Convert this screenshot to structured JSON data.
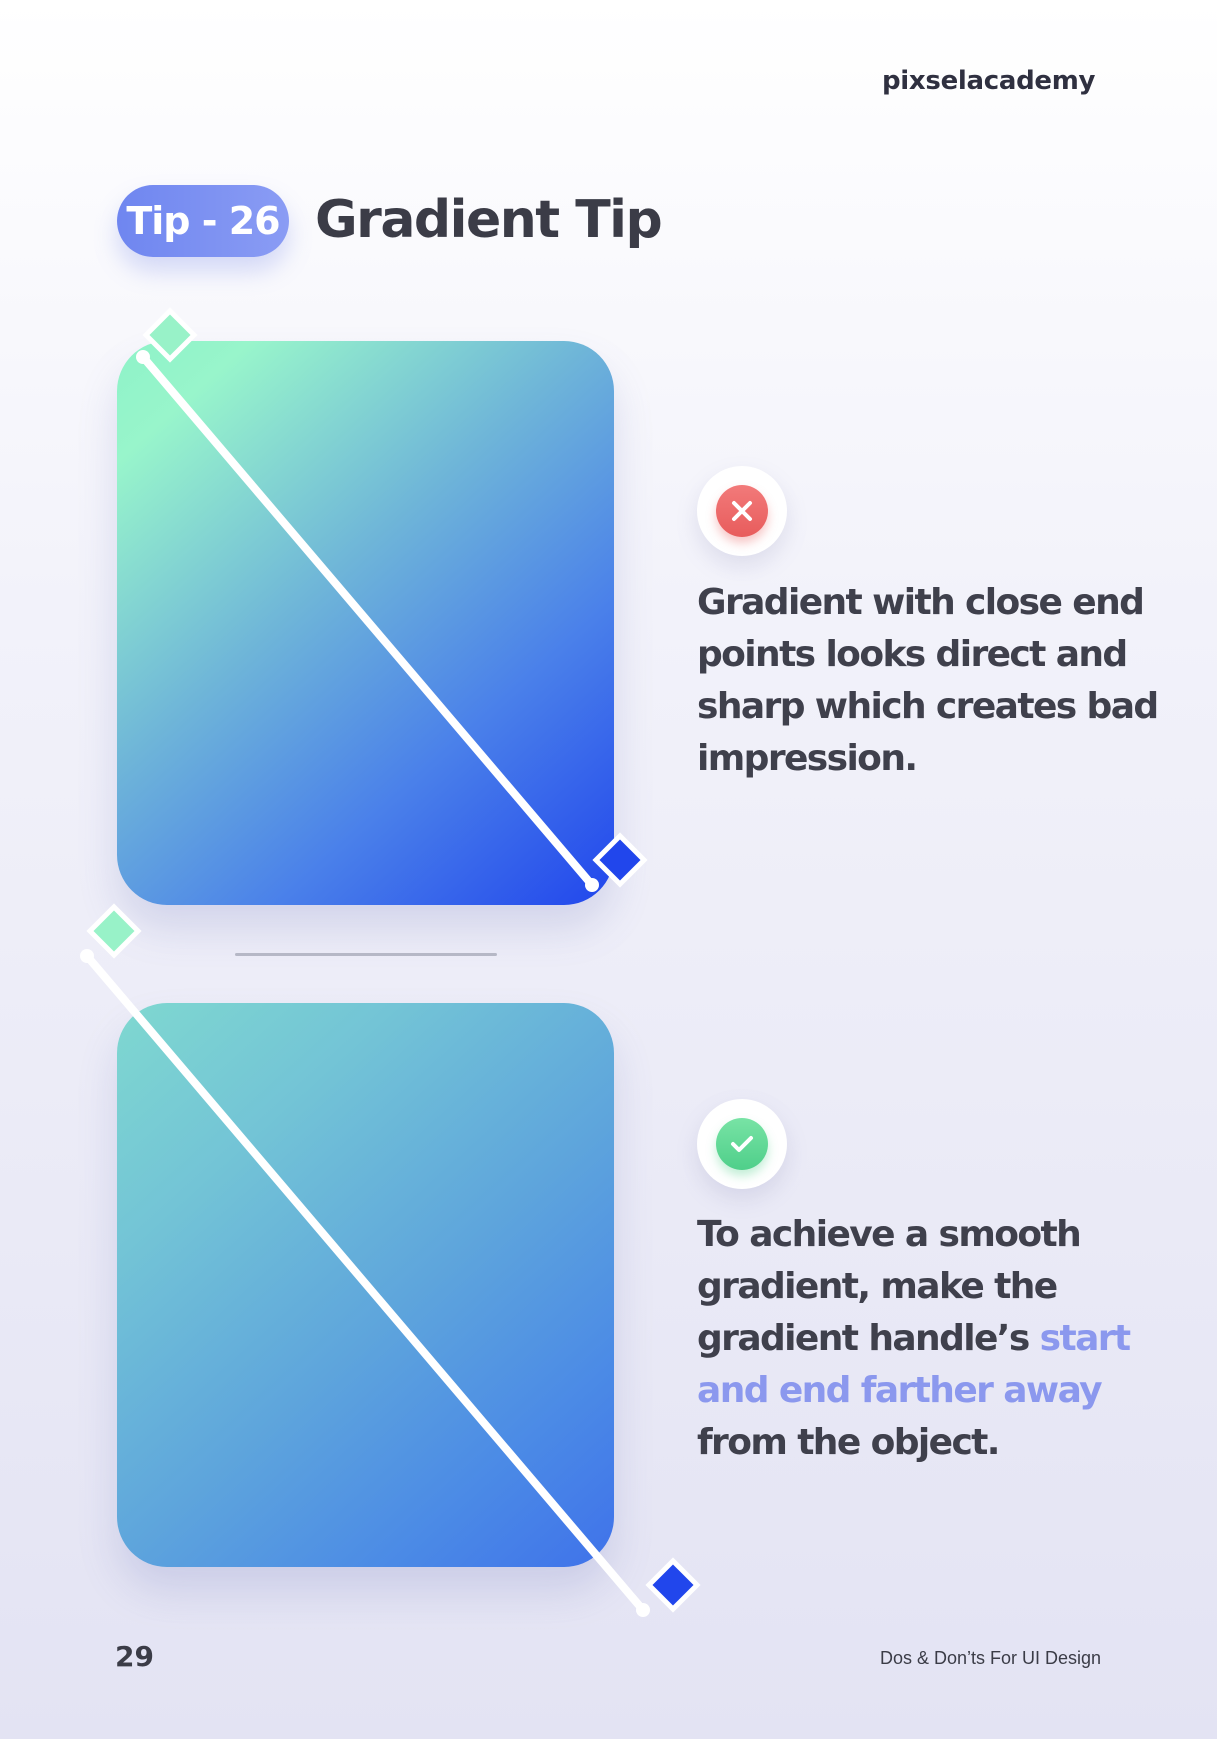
{
  "header": {
    "brand": "pixselacademy"
  },
  "tip": {
    "badge": "Tip - 26",
    "title": "Gradient Tip"
  },
  "examples": [
    {
      "status": "bad",
      "status_icon": "close-icon",
      "description": "Gradient with close end points looks direct and sharp which creates bad impression."
    },
    {
      "status": "good",
      "status_icon": "check-icon",
      "description_plain_start": "To achieve a smooth gradient, make the gradient handle’s ",
      "description_highlight": "start and end farther away",
      "description_plain_end": " from the object."
    }
  ],
  "colors": {
    "accent": "#8b98ee",
    "gradient_start": "#98f5cb",
    "gradient_end": "#2146ec",
    "bad": "#e85c5c",
    "good": "#4fcf8a"
  },
  "footer": {
    "page_number": "29",
    "book_title": "Dos & Don’ts For UI Design"
  }
}
